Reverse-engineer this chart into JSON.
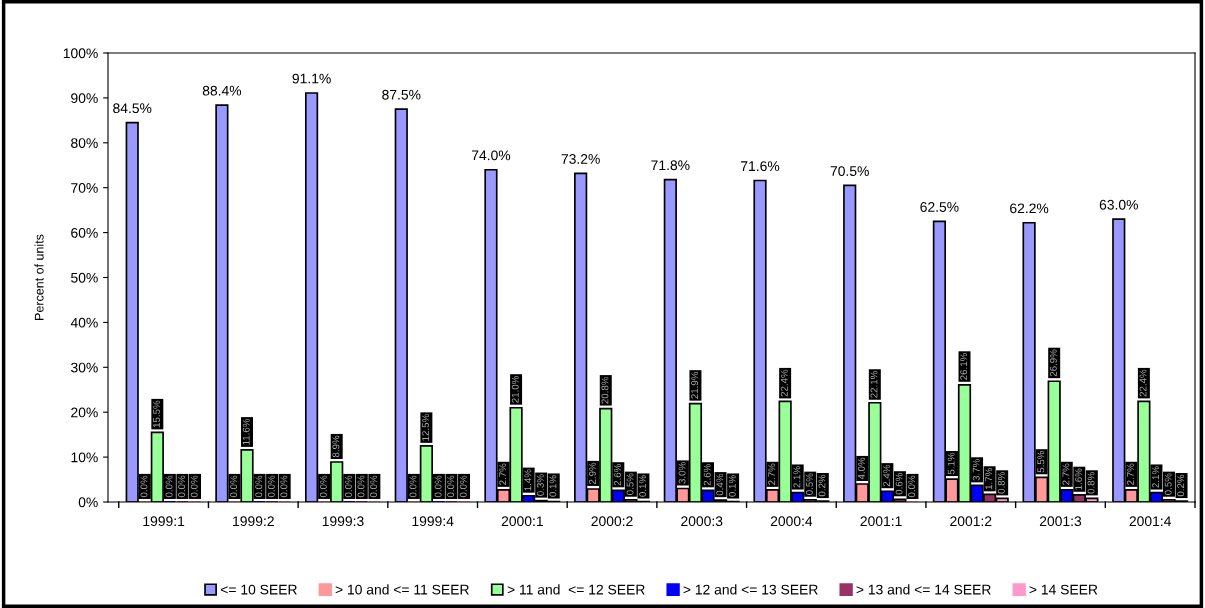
{
  "chart_data": {
    "type": "bar",
    "ylabel": "Percent of units",
    "categories": [
      "1999:1",
      "1999:2",
      "1999:3",
      "1999:4",
      "2000:1",
      "2000:2",
      "2000:3",
      "2000:4",
      "2001:1",
      "2001:2",
      "2001:3",
      "2001:4"
    ],
    "series": [
      {
        "name": "<= 10 SEER",
        "color": "#9999ff",
        "values": [
          84.5,
          88.4,
          91.1,
          87.5,
          74.0,
          73.2,
          71.8,
          71.6,
          70.5,
          62.5,
          62.2,
          63.0
        ],
        "value_labels": [
          "84.5%",
          "88.4%",
          "91.1%",
          "87.5%",
          "74.0%",
          "73.2%",
          "71.8%",
          "71.6%",
          "70.5%",
          "62.5%",
          "62.2%",
          "63.0%"
        ]
      },
      {
        "name": "> 10 and <= 11 SEER",
        "color": "#ff9999",
        "values": [
          0.0,
          0.0,
          0.0,
          0.0,
          2.7,
          2.9,
          3.0,
          2.7,
          4.0,
          5.1,
          5.5,
          2.7
        ],
        "value_labels": [
          "0.0%",
          "0.0%",
          "0.0%",
          "0.0%",
          "2.7%",
          "2.9%",
          "3.0%",
          "2.7%",
          "4.0%",
          "5.1%",
          "5.5%",
          "2.7%"
        ]
      },
      {
        "name": "> 11 and  <= 12 SEER",
        "color": "#99ff99",
        "values": [
          15.5,
          11.6,
          8.9,
          12.5,
          21.0,
          20.8,
          21.9,
          22.4,
          22.1,
          26.1,
          26.9,
          22.4
        ],
        "value_labels": [
          "15.5%",
          "11.6%",
          "8.9%",
          "12.5%",
          "21.0%",
          "20.8%",
          "21.9%",
          "22.4%",
          "22.1%",
          "26.1%",
          "26.9%",
          "22.4%"
        ]
      },
      {
        "name": "> 12 and <= 13 SEER",
        "color": "#0000ff",
        "values": [
          0.0,
          0.0,
          0.0,
          0.0,
          1.4,
          2.6,
          2.6,
          2.1,
          2.4,
          3.7,
          2.7,
          2.1
        ],
        "value_labels": [
          "0.0%",
          "0.0%",
          "0.0%",
          "0.0%",
          "1.4%",
          "2.6%",
          "2.6%",
          "2.1%",
          "2.4%",
          "3.7%",
          "2.7%",
          "2.1%"
        ]
      },
      {
        "name": "> 13 and <= 14 SEER",
        "color": "#993366",
        "values": [
          0.0,
          0.0,
          0.0,
          0.0,
          0.3,
          0.5,
          0.4,
          0.5,
          0.6,
          1.7,
          1.6,
          0.5
        ],
        "value_labels": [
          "0.0%",
          "0.0%",
          "0.0%",
          "0.0%",
          "0.3%",
          "0.5%",
          "0.4%",
          "0.5%",
          "0.6%",
          "1.7%",
          "1.6%",
          "0.5%"
        ]
      },
      {
        "name": "> 14 SEER",
        "color": "#ff99cc",
        "values": [
          0.0,
          0.0,
          0.0,
          0.0,
          0.1,
          0.1,
          0.1,
          0.2,
          0.0,
          0.8,
          0.8,
          0.2
        ],
        "value_labels": [
          "0.0%",
          "0.0%",
          "0.0%",
          "0.0%",
          "0.1%",
          "0.1%",
          "0.1%",
          "0.2%",
          "0.0%",
          "0.8%",
          "0.8%",
          "0.2%"
        ]
      }
    ],
    "ylim": [
      0,
      100
    ],
    "yticks": [
      {
        "value": 0,
        "label": "0%"
      },
      {
        "value": 10,
        "label": "10%"
      },
      {
        "value": 20,
        "label": "20%"
      },
      {
        "value": 30,
        "label": "30%"
      },
      {
        "value": 40,
        "label": "40%"
      },
      {
        "value": 50,
        "label": "50%"
      },
      {
        "value": 60,
        "label": "60%"
      },
      {
        "value": 70,
        "label": "70%"
      },
      {
        "value": 80,
        "label": "80%"
      },
      {
        "value": 90,
        "label": "90%"
      },
      {
        "value": 100,
        "label": "100%"
      }
    ],
    "grid": false,
    "legend": "bottom"
  }
}
